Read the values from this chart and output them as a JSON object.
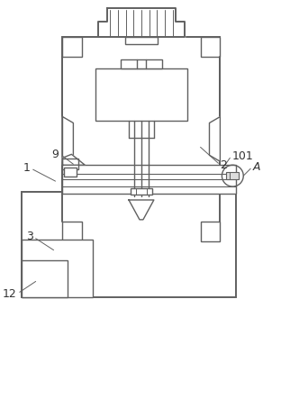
{
  "bg_color": "#ffffff",
  "lc": "#606060",
  "lw": 1.0,
  "tlw": 1.4
}
